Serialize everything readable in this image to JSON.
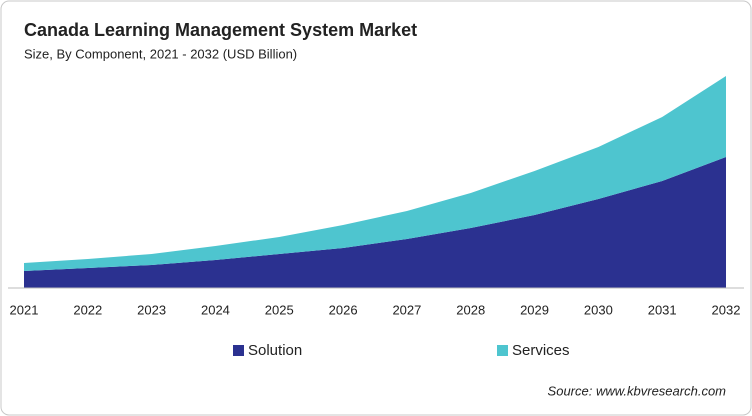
{
  "chart_data": {
    "type": "stacked_area",
    "title": "Canada Learning Management System Market",
    "subtitle": "Size, By Component, 2021 - 2032 (USD Billion)",
    "categories": [
      "2021",
      "2022",
      "2023",
      "2024",
      "2025",
      "2026",
      "2027",
      "2028",
      "2029",
      "2030",
      "2031",
      "2032"
    ],
    "series": [
      {
        "name": "Solution",
        "color": "#2b3190",
        "values": [
          17,
          20,
          23,
          28,
          34,
          40,
          49,
          60,
          73,
          89,
          107,
          131
        ]
      },
      {
        "name": "Services",
        "color": "#4ec5cf",
        "values": [
          8,
          9,
          11,
          14,
          17,
          23,
          28,
          35,
          44,
          52,
          64,
          81
        ]
      }
    ],
    "ylim": [
      0,
      212
    ],
    "source": "Source: www.kbvresearch.com"
  }
}
